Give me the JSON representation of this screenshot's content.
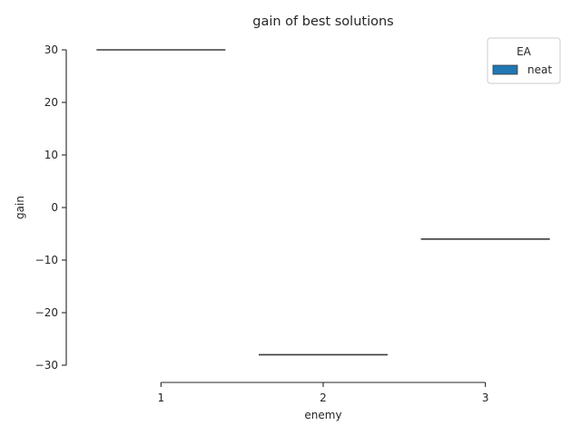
{
  "chart_data": {
    "type": "box",
    "title": "gain of best solutions",
    "xlabel": "enemy",
    "ylabel": "gain",
    "categories": [
      "1",
      "2",
      "3"
    ],
    "series": [
      {
        "name": "neat",
        "values": [
          30,
          -28,
          -6
        ]
      }
    ],
    "ylim": [
      -30,
      30
    ],
    "yticks": [
      30,
      20,
      10,
      0,
      -10,
      -20,
      -30
    ],
    "ytick_labels": [
      "30",
      "20",
      "10",
      "0",
      "−10",
      "−20",
      "−30"
    ],
    "grid": false,
    "legend": {
      "title": "EA",
      "placement": "top-right",
      "entries": [
        "neat"
      ]
    },
    "colors": {
      "neat": "#1f77b4",
      "median_line": "#3d3d3d",
      "axis": "#262626"
    }
  }
}
